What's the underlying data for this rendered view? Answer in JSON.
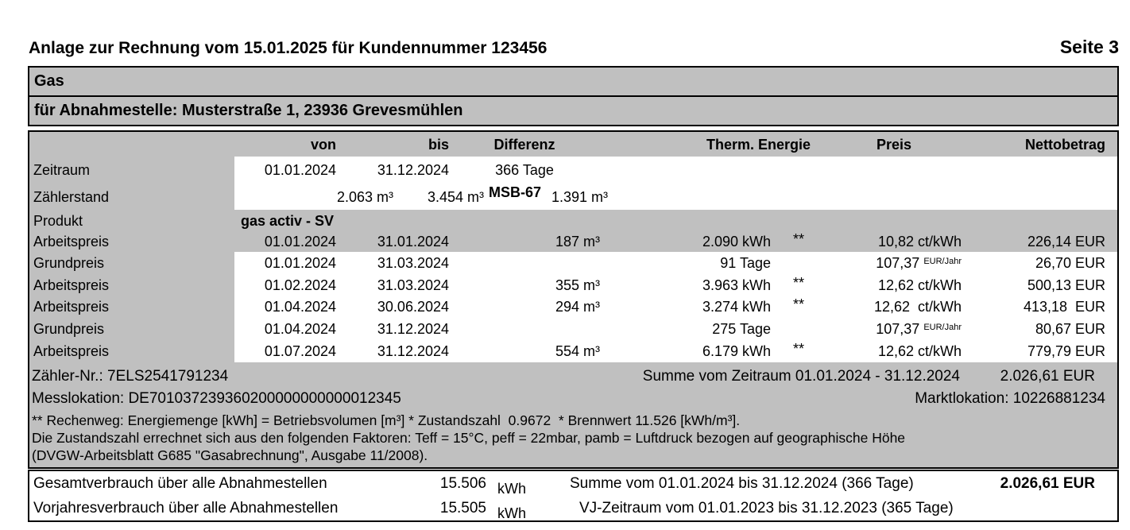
{
  "colors": {
    "panel_gray": "#c0c0c0",
    "border": "#000000",
    "text": "#000000",
    "background": "#ffffff"
  },
  "header": {
    "title": "Anlage zur Rechnung vom 15.01.2025 für Kundennummer 123456",
    "page": "Seite 3"
  },
  "bars": {
    "product": "Gas",
    "delivery_point": "für Abnahmestelle: Musterstraße 1, 23936 Grevesmühlen"
  },
  "table": {
    "columns": {
      "von": "von",
      "bis": "bis",
      "differenz": "Differenz",
      "therm_energie": "Therm. Energie",
      "preis": "Preis",
      "nettobetrag": "Nettobetrag"
    },
    "zeitraum": {
      "label": "Zeitraum",
      "von": "01.01.2024",
      "bis": "31.12.2024",
      "differenz": "366 Tage"
    },
    "zaehlerstand": {
      "label": "Zählerstand",
      "von": "2.063 m³",
      "bis": "3.454 m³",
      "meter_note": "MSB-67",
      "differenz": "1.391 m³"
    },
    "produkt": {
      "label": "Produkt",
      "value": "gas activ - SV"
    },
    "price_rows": [
      {
        "label": "Arbeitspreis",
        "von": "01.01.2024",
        "bis": "31.01.2024",
        "differenz": "187 m³",
        "menge": "2.090 kWh",
        "marker": "**",
        "preis": "10,82 ct/kWh",
        "netto": "226,14 EUR"
      },
      {
        "label": "Grundpreis",
        "von": "01.01.2024",
        "bis": "31.03.2024",
        "differenz": "",
        "menge": "91 Tage",
        "marker": "",
        "preis": "107,37",
        "preis_unit": "EUR/Jahr",
        "netto": "26,70 EUR"
      },
      {
        "label": "Arbeitspreis",
        "von": "01.02.2024",
        "bis": "31.03.2024",
        "differenz": "355 m³",
        "menge": "3.963 kWh",
        "marker": "**",
        "preis": "12,62 ct/kWh",
        "netto": "500,13 EUR"
      },
      {
        "label": "Arbeitspreis",
        "von": "01.04.2024",
        "bis": "30.06.2024",
        "differenz": "294 m³",
        "menge": "3.274 kWh",
        "marker": "**",
        "preis": "12,62  ct/kWh",
        "netto": "413,18  EUR"
      },
      {
        "label": "Grundpreis",
        "von": "01.04.2024",
        "bis": "31.12.2024",
        "differenz": "",
        "menge": "275 Tage",
        "marker": "",
        "preis": "107,37",
        "preis_unit": "EUR/Jahr",
        "netto": "80,67 EUR"
      },
      {
        "label": "Arbeitspreis",
        "von": "01.07.2024",
        "bis": "31.12.2024",
        "differenz": "554 m³",
        "menge": "6.179 kWh",
        "marker": "**",
        "preis": "12,62 ct/kWh",
        "netto": "779,79 EUR"
      }
    ],
    "meter": {
      "zaehler_nr": "Zähler-Nr.: 7ELS2541791234",
      "messlokation": "Messlokation: DE701037239360200000000000012345",
      "summe_label": "Summe vom Zeitraum 01.01.2024 - 31.12.2024",
      "summe_value": "2.026,61 EUR",
      "marktlokation": "Marktlokation: 10226881234"
    },
    "footnotes": [
      "** Rechenweg: Energiemenge [kWh] = Betriebsvolumen [m³] * Zustandszahl  0.9672  * Brennwert 11.526 [kWh/m³].",
      "Die Zustandszahl errechnet sich aus den folgenden Faktoren: Teff = 15°C, peff = 22mbar, pamb = Luftdruck bezogen auf geographische Höhe",
      "(DVGW-Arbeitsblatt G685 \"Gasabrechnung\", Ausgabe 11/2008)."
    ]
  },
  "totals": {
    "rows": [
      {
        "label": "Gesamtverbrauch über alle Abnahmestellen",
        "value": "15.506",
        "unit": "kWh",
        "period": "Summe vom 01.01.2024 bis 31.12.2024 (366 Tage)",
        "amount": "2.026,61 EUR"
      },
      {
        "label": "Vorjahresverbrauch über alle Abnahmestellen",
        "value": "15.505",
        "unit": "kWh",
        "period": "VJ-Zeitraum vom 01.01.2023 bis 31.12.2023 (365 Tage)",
        "amount": ""
      }
    ]
  }
}
